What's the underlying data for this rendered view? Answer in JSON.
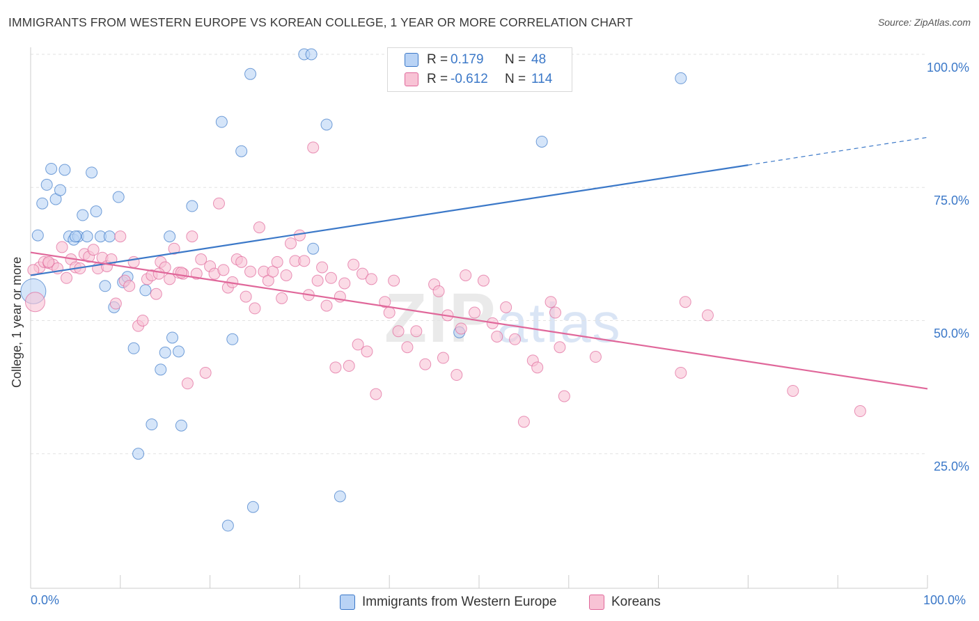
{
  "title": "IMMIGRANTS FROM WESTERN EUROPE VS KOREAN COLLEGE, 1 YEAR OR MORE CORRELATION CHART",
  "source": "Source: ZipAtlas.com",
  "watermark": {
    "main": "ZIP",
    "sub": "atlas"
  },
  "colors": {
    "blue": "#3b78c8",
    "blue_fill": "#b9d3f5",
    "pink": "#e0679a",
    "pink_fill": "#f8c3d5",
    "tick_text": "#3b78c8"
  },
  "legend": {
    "rows": [
      {
        "r_label": "R =",
        "r_value": "0.179",
        "n_label": "N =",
        "n_value": "48"
      },
      {
        "r_label": "R =",
        "r_value": "-0.612",
        "n_label": "N =",
        "n_value": "114"
      }
    ]
  },
  "bottom_legend": [
    {
      "label": "Immigrants from Western Europe"
    },
    {
      "label": "Koreans"
    }
  ],
  "chart_data": {
    "type": "scatter",
    "title": "IMMIGRANTS FROM WESTERN EUROPE VS KOREAN COLLEGE, 1 YEAR OR MORE CORRELATION CHART",
    "xlabel": "",
    "ylabel": "College, 1 year or more",
    "xlim": [
      0,
      100
    ],
    "ylim": [
      0,
      105
    ],
    "x_tick_labels": [
      "0.0%",
      "100.0%"
    ],
    "y_tick_labels": [
      "25.0%",
      "50.0%",
      "75.0%",
      "100.0%"
    ],
    "y_ticks": [
      25,
      50,
      75,
      100
    ],
    "grid": true,
    "legend_position": "top-center",
    "series": [
      {
        "name": "Immigrants from Western Europe",
        "R": 0.179,
        "N": 48,
        "trend": {
          "x0": 0,
          "y0": 58.5,
          "x1": 80,
          "y1": 79.2,
          "dashed_to_x": 100,
          "dashed_to_y": 84.4
        },
        "points": [
          [
            0.3,
            55.5
          ],
          [
            0.8,
            66.0
          ],
          [
            1.3,
            72.0
          ],
          [
            1.8,
            75.5
          ],
          [
            2.3,
            78.5
          ],
          [
            2.8,
            72.8
          ],
          [
            3.3,
            74.5
          ],
          [
            3.8,
            78.3
          ],
          [
            4.3,
            65.8
          ],
          [
            4.8,
            65.2
          ],
          [
            5.3,
            65.8
          ],
          [
            5.8,
            69.8
          ],
          [
            6.3,
            65.8
          ],
          [
            6.8,
            77.8
          ],
          [
            7.3,
            70.5
          ],
          [
            7.8,
            65.8
          ],
          [
            8.3,
            56.5
          ],
          [
            8.8,
            65.8
          ],
          [
            9.3,
            52.5
          ],
          [
            9.8,
            73.2
          ],
          [
            10.3,
            57.2
          ],
          [
            10.8,
            58.2
          ],
          [
            11.5,
            44.8
          ],
          [
            12.0,
            25.0
          ],
          [
            12.8,
            55.7
          ],
          [
            13.5,
            30.5
          ],
          [
            14.5,
            40.8
          ],
          [
            15.0,
            44.0
          ],
          [
            15.5,
            65.8
          ],
          [
            15.8,
            46.8
          ],
          [
            16.5,
            44.2
          ],
          [
            16.8,
            30.3
          ],
          [
            18.0,
            71.5
          ],
          [
            21.3,
            87.3
          ],
          [
            22.5,
            46.5
          ],
          [
            23.5,
            81.8
          ],
          [
            24.5,
            96.3
          ],
          [
            24.8,
            15.0
          ],
          [
            22.0,
            11.5
          ],
          [
            30.5,
            100.0
          ],
          [
            31.3,
            100.0
          ],
          [
            31.5,
            63.5
          ],
          [
            33.0,
            86.8
          ],
          [
            34.5,
            17.0
          ],
          [
            47.8,
            47.8
          ],
          [
            57.0,
            83.6
          ],
          [
            72.5,
            95.5
          ],
          [
            5.0,
            65.8
          ]
        ]
      },
      {
        "name": "Koreans",
        "R": -0.612,
        "N": 114,
        "trend": {
          "x0": 0,
          "y0": 62.8,
          "x1": 100,
          "y1": 37.2
        },
        "points": [
          [
            0.5,
            53.5
          ],
          [
            1.0,
            60.0
          ],
          [
            1.5,
            61.0
          ],
          [
            2.0,
            60.8
          ],
          [
            2.5,
            60.5
          ],
          [
            3.0,
            59.8
          ],
          [
            3.5,
            63.8
          ],
          [
            4.0,
            58.0
          ],
          [
            4.5,
            61.5
          ],
          [
            5.0,
            60.0
          ],
          [
            5.5,
            59.8
          ],
          [
            6.0,
            62.5
          ],
          [
            6.5,
            62.0
          ],
          [
            7.0,
            63.3
          ],
          [
            7.5,
            59.8
          ],
          [
            8.0,
            61.8
          ],
          [
            8.5,
            60.2
          ],
          [
            9.0,
            61.5
          ],
          [
            9.5,
            53.2
          ],
          [
            10.0,
            65.8
          ],
          [
            10.5,
            57.5
          ],
          [
            11.0,
            56.5
          ],
          [
            11.5,
            61.0
          ],
          [
            12.0,
            49.0
          ],
          [
            12.5,
            50.0
          ],
          [
            13.0,
            57.8
          ],
          [
            13.5,
            58.5
          ],
          [
            14.0,
            55.0
          ],
          [
            14.5,
            61.0
          ],
          [
            15.0,
            60.0
          ],
          [
            15.5,
            57.8
          ],
          [
            16.0,
            63.5
          ],
          [
            16.5,
            59.0
          ],
          [
            17.0,
            58.8
          ],
          [
            17.5,
            38.2
          ],
          [
            18.0,
            65.8
          ],
          [
            18.5,
            58.8
          ],
          [
            19.0,
            61.5
          ],
          [
            19.5,
            40.2
          ],
          [
            20.0,
            60.2
          ],
          [
            20.5,
            58.8
          ],
          [
            21.0,
            72.0
          ],
          [
            21.5,
            59.5
          ],
          [
            22.0,
            56.2
          ],
          [
            22.5,
            57.2
          ],
          [
            23.0,
            61.5
          ],
          [
            23.5,
            61.0
          ],
          [
            24.0,
            54.5
          ],
          [
            24.5,
            59.2
          ],
          [
            25.0,
            52.3
          ],
          [
            25.5,
            67.5
          ],
          [
            26.0,
            59.2
          ],
          [
            26.5,
            57.5
          ],
          [
            27.0,
            59.2
          ],
          [
            27.5,
            61.0
          ],
          [
            28.0,
            54.2
          ],
          [
            28.5,
            58.5
          ],
          [
            29.0,
            64.5
          ],
          [
            29.5,
            61.2
          ],
          [
            30.0,
            66.0
          ],
          [
            30.5,
            61.2
          ],
          [
            31.0,
            54.8
          ],
          [
            31.5,
            82.5
          ],
          [
            32.0,
            57.5
          ],
          [
            32.5,
            60.0
          ],
          [
            33.0,
            52.8
          ],
          [
            33.5,
            58.0
          ],
          [
            34.0,
            41.2
          ],
          [
            34.5,
            54.5
          ],
          [
            35.0,
            57.0
          ],
          [
            35.5,
            41.5
          ],
          [
            36.0,
            60.5
          ],
          [
            36.5,
            45.5
          ],
          [
            37.0,
            58.8
          ],
          [
            37.5,
            44.2
          ],
          [
            38.0,
            57.8
          ],
          [
            38.5,
            36.2
          ],
          [
            39.5,
            53.5
          ],
          [
            40.0,
            51.5
          ],
          [
            40.5,
            57.5
          ],
          [
            41.0,
            48.0
          ],
          [
            42.0,
            45.0
          ],
          [
            43.0,
            48.0
          ],
          [
            44.0,
            41.8
          ],
          [
            45.0,
            56.8
          ],
          [
            45.5,
            55.5
          ],
          [
            46.0,
            43.0
          ],
          [
            46.5,
            51.0
          ],
          [
            47.5,
            39.8
          ],
          [
            48.0,
            48.5
          ],
          [
            48.5,
            58.5
          ],
          [
            49.5,
            51.5
          ],
          [
            50.5,
            57.5
          ],
          [
            51.5,
            49.5
          ],
          [
            52.0,
            47.0
          ],
          [
            53.0,
            52.5
          ],
          [
            54.0,
            46.5
          ],
          [
            55.0,
            31.0
          ],
          [
            56.0,
            42.5
          ],
          [
            56.5,
            41.2
          ],
          [
            58.0,
            53.5
          ],
          [
            58.5,
            51.5
          ],
          [
            59.0,
            45.0
          ],
          [
            59.5,
            35.8
          ],
          [
            63.0,
            43.2
          ],
          [
            72.5,
            40.2
          ],
          [
            73.0,
            53.5
          ],
          [
            75.5,
            51.0
          ],
          [
            85.0,
            36.8
          ],
          [
            92.5,
            33.0
          ],
          [
            0.3,
            59.5
          ],
          [
            2.0,
            61.0
          ],
          [
            16.8,
            59.0
          ],
          [
            14.3,
            58.8
          ]
        ]
      }
    ]
  }
}
